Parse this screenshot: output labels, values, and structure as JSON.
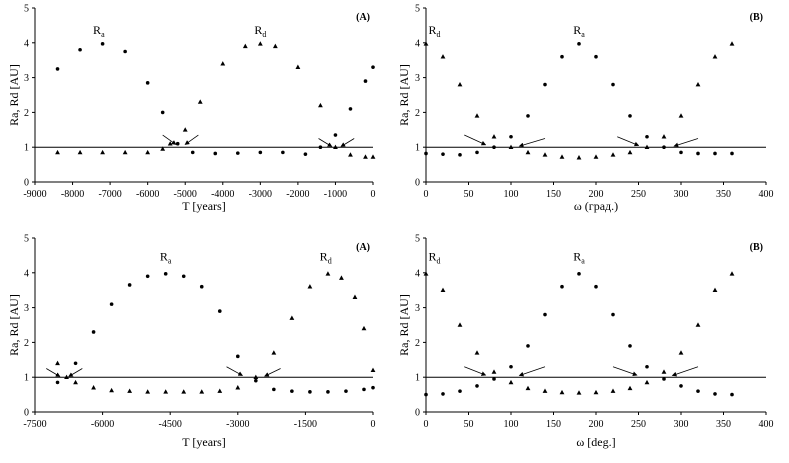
{
  "chart_data": [
    {
      "type": "scatter",
      "tag": "(A)",
      "xlabel": "T [years]",
      "ylabel": "Ra, Rd [AU]",
      "xlim": [
        -9000,
        0
      ],
      "ylim": [
        0,
        5
      ],
      "xticks": [
        "-9000",
        "-8000",
        "-7000",
        "-6000",
        "-5000",
        "-4000",
        "-3000",
        "-2000",
        "-1000",
        "0"
      ],
      "yticks": [
        "0",
        "1",
        "2",
        "3",
        "4",
        "5"
      ],
      "reference_line": 1,
      "series": [
        {
          "name": "Ra",
          "marker": "circle",
          "x": [
            -8400,
            -7800,
            -7200,
            -6600,
            -6000,
            -5600,
            -5200,
            -4800,
            -4200,
            -3600,
            -3000,
            -2400,
            -1800,
            -1400,
            -1000,
            -600,
            -200,
            0
          ],
          "y": [
            3.25,
            3.8,
            3.97,
            3.75,
            2.85,
            2.0,
            1.1,
            0.85,
            0.82,
            0.83,
            0.85,
            0.85,
            0.8,
            1.0,
            1.35,
            2.1,
            2.9,
            3.3
          ]
        },
        {
          "name": "Rd",
          "marker": "triangle",
          "x": [
            -8400,
            -7800,
            -7200,
            -6600,
            -6000,
            -5600,
            -5400,
            -5000,
            -4600,
            -4000,
            -3400,
            -3000,
            -2600,
            -2000,
            -1400,
            -1000,
            -600,
            -200,
            0
          ],
          "y": [
            0.85,
            0.85,
            0.85,
            0.85,
            0.85,
            0.95,
            1.1,
            1.5,
            2.3,
            3.4,
            3.9,
            3.97,
            3.9,
            3.3,
            2.2,
            1.0,
            0.78,
            0.72,
            0.72
          ]
        }
      ],
      "labels": [
        {
          "text": "R",
          "sub": "a",
          "x": -7300,
          "y": 4.25
        },
        {
          "text": "R",
          "sub": "d",
          "x": -3000,
          "y": 4.25
        }
      ],
      "arrows": [
        {
          "from": [
            -5600,
            1.35
          ],
          "to": [
            -5250,
            1.08
          ]
        },
        {
          "from": [
            -4650,
            1.35
          ],
          "to": [
            -5000,
            1.08
          ]
        },
        {
          "from": [
            -1450,
            1.25
          ],
          "to": [
            -1100,
            1.02
          ]
        },
        {
          "from": [
            -500,
            1.25
          ],
          "to": [
            -850,
            1.02
          ]
        }
      ]
    },
    {
      "type": "scatter",
      "tag": "(B)",
      "xlabel": "ω (град.)",
      "ylabel": "Ra, Rd [AU]",
      "xlim": [
        0,
        400
      ],
      "ylim": [
        0,
        5
      ],
      "xticks": [
        "0",
        "50",
        "100",
        "150",
        "200",
        "250",
        "300",
        "350",
        "400"
      ],
      "yticks": [
        "0",
        "1",
        "2",
        "3",
        "4",
        "5"
      ],
      "reference_line": 1,
      "series": [
        {
          "name": "Ra",
          "marker": "circle",
          "x": [
            0,
            20,
            40,
            60,
            80,
            100,
            120,
            140,
            160,
            180,
            200,
            220,
            240,
            260,
            280,
            300,
            320,
            340,
            360
          ],
          "y": [
            0.82,
            0.8,
            0.78,
            0.85,
            1.0,
            1.3,
            1.9,
            2.8,
            3.6,
            3.97,
            3.6,
            2.8,
            1.9,
            1.3,
            1.0,
            0.85,
            0.82,
            0.82,
            0.82
          ]
        },
        {
          "name": "Rd",
          "marker": "triangle",
          "x": [
            0,
            20,
            40,
            60,
            80,
            100,
            120,
            140,
            160,
            180,
            200,
            220,
            240,
            260,
            280,
            300,
            320,
            340,
            360
          ],
          "y": [
            3.97,
            3.6,
            2.8,
            1.9,
            1.3,
            1.0,
            0.85,
            0.78,
            0.72,
            0.7,
            0.72,
            0.78,
            0.85,
            1.0,
            1.3,
            1.9,
            2.8,
            3.6,
            3.97
          ]
        }
      ],
      "labels": [
        {
          "text": "R",
          "sub": "d",
          "x": 10,
          "y": 4.25
        },
        {
          "text": "R",
          "sub": "a",
          "x": 180,
          "y": 4.25
        }
      ],
      "arrows": [
        {
          "from": [
            45,
            1.35
          ],
          "to": [
            70,
            1.07
          ]
        },
        {
          "from": [
            140,
            1.25
          ],
          "to": [
            110,
            1.03
          ]
        },
        {
          "from": [
            225,
            1.3
          ],
          "to": [
            250,
            1.05
          ]
        },
        {
          "from": [
            320,
            1.25
          ],
          "to": [
            292,
            1.03
          ]
        }
      ]
    },
    {
      "type": "scatter",
      "tag": "(A)",
      "xlabel": "T [years]",
      "ylabel": "Ra, Rd [AU]",
      "xlim": [
        -7500,
        0
      ],
      "ylim": [
        0,
        5
      ],
      "xticks": [
        "-7500",
        "-6000",
        "-4500",
        "-3000",
        "-1500",
        "0"
      ],
      "yticks": [
        "0",
        "1",
        "2",
        "3",
        "4",
        "5"
      ],
      "reference_line": 1,
      "series": [
        {
          "name": "Ra",
          "marker": "circle",
          "x": [
            -7000,
            -6600,
            -6200,
            -5800,
            -5400,
            -5000,
            -4600,
            -4200,
            -3800,
            -3400,
            -3000,
            -2600,
            -2200,
            -1800,
            -1400,
            -1000,
            -600,
            -200,
            0
          ],
          "y": [
            0.85,
            1.4,
            2.3,
            3.1,
            3.65,
            3.9,
            3.97,
            3.9,
            3.6,
            2.9,
            1.6,
            0.9,
            0.65,
            0.6,
            0.58,
            0.58,
            0.6,
            0.65,
            0.7
          ]
        },
        {
          "name": "Rd",
          "marker": "triangle",
          "x": [
            -7000,
            -6800,
            -6600,
            -6200,
            -5800,
            -5400,
            -5000,
            -4600,
            -4200,
            -3800,
            -3400,
            -3000,
            -2600,
            -2200,
            -1800,
            -1400,
            -1000,
            -700,
            -400,
            -200,
            0
          ],
          "y": [
            1.4,
            1.0,
            0.85,
            0.7,
            0.62,
            0.6,
            0.58,
            0.58,
            0.58,
            0.58,
            0.6,
            0.7,
            1.0,
            1.7,
            2.7,
            3.6,
            3.97,
            3.85,
            3.3,
            2.4,
            1.2
          ]
        }
      ],
      "labels": [
        {
          "text": "R",
          "sub": "a",
          "x": -4600,
          "y": 4.35
        },
        {
          "text": "R",
          "sub": "d",
          "x": -1050,
          "y": 4.35
        }
      ],
      "arrows": [
        {
          "from": [
            -7250,
            1.25
          ],
          "to": [
            -6950,
            1.02
          ]
        },
        {
          "from": [
            -6450,
            1.25
          ],
          "to": [
            -6750,
            1.02
          ]
        },
        {
          "from": [
            -3250,
            1.3
          ],
          "to": [
            -2900,
            1.05
          ]
        },
        {
          "from": [
            -2050,
            1.25
          ],
          "to": [
            -2400,
            1.03
          ]
        }
      ]
    },
    {
      "type": "scatter",
      "tag": "(B)",
      "xlabel": "ω [deg.]",
      "ylabel": "Ra, Rd [AU]",
      "xlim": [
        0,
        400
      ],
      "ylim": [
        0,
        5
      ],
      "xticks": [
        "0",
        "50",
        "100",
        "150",
        "200",
        "250",
        "300",
        "350",
        "400"
      ],
      "yticks": [
        "0",
        "1",
        "2",
        "3",
        "4",
        "5"
      ],
      "reference_line": 1,
      "series": [
        {
          "name": "Ra",
          "marker": "circle",
          "x": [
            0,
            20,
            40,
            60,
            80,
            100,
            120,
            140,
            160,
            180,
            200,
            220,
            240,
            260,
            280,
            300,
            320,
            340,
            360
          ],
          "y": [
            0.5,
            0.52,
            0.6,
            0.75,
            0.95,
            1.3,
            1.9,
            2.8,
            3.6,
            3.97,
            3.6,
            2.8,
            1.9,
            1.3,
            0.95,
            0.75,
            0.6,
            0.52,
            0.5
          ]
        },
        {
          "name": "Rd",
          "marker": "triangle",
          "x": [
            0,
            20,
            40,
            60,
            80,
            100,
            120,
            140,
            160,
            180,
            200,
            220,
            240,
            260,
            280,
            300,
            320,
            340,
            360
          ],
          "y": [
            3.97,
            3.5,
            2.5,
            1.7,
            1.15,
            0.85,
            0.68,
            0.6,
            0.56,
            0.55,
            0.56,
            0.6,
            0.68,
            0.85,
            1.15,
            1.7,
            2.5,
            3.5,
            3.97
          ]
        }
      ],
      "labels": [
        {
          "text": "R",
          "sub": "d",
          "x": 10,
          "y": 4.35
        },
        {
          "text": "R",
          "sub": "a",
          "x": 180,
          "y": 4.35
        }
      ],
      "arrows": [
        {
          "from": [
            45,
            1.3
          ],
          "to": [
            70,
            1.06
          ]
        },
        {
          "from": [
            140,
            1.3
          ],
          "to": [
            110,
            1.05
          ]
        },
        {
          "from": [
            220,
            1.3
          ],
          "to": [
            248,
            1.06
          ]
        },
        {
          "from": [
            320,
            1.3
          ],
          "to": [
            290,
            1.05
          ]
        }
      ]
    }
  ]
}
